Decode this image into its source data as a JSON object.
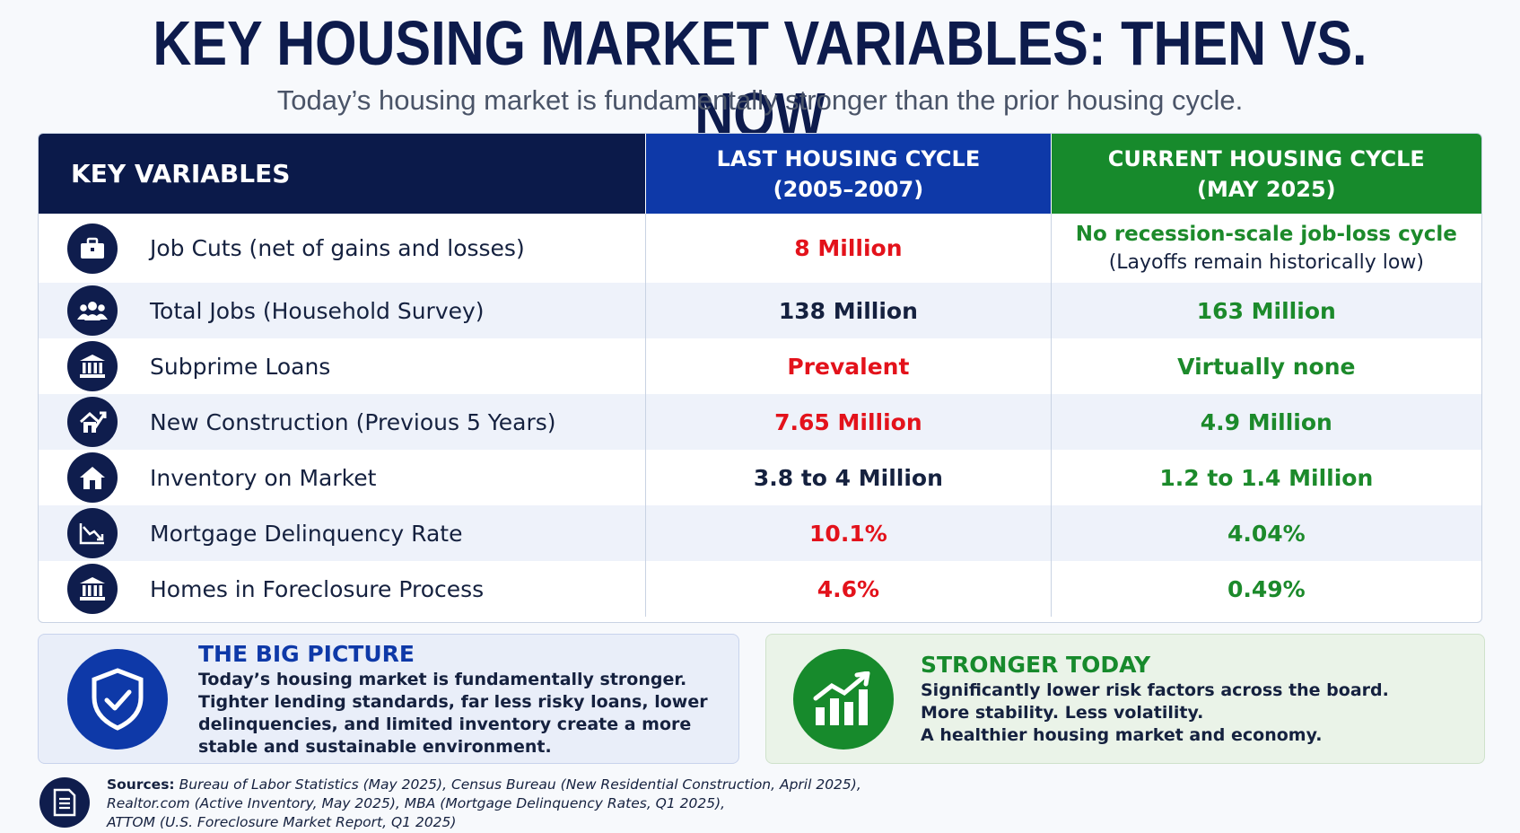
{
  "header": {
    "title": "KEY HOUSING MARKET VARIABLES: THEN VS. NOW",
    "subtitle": "Today’s housing market is fundamentally stronger than the prior housing cycle."
  },
  "table": {
    "col_key": "KEY VARIABLES",
    "col_last_line1": "LAST HOUSING CYCLE",
    "col_last_line2": "(2005–2007)",
    "col_cur_line1": "CURRENT HOUSING CYCLE",
    "col_cur_line2": "(MAY 2025)",
    "colors": {
      "key_header": "#0b1a4a",
      "last_header": "#0e39a8",
      "current_header": "#178a2c",
      "negative": "#e3121b",
      "positive": "#1c8a2b"
    },
    "rows": [
      {
        "icon": "briefcase-icon",
        "label": "Job Cuts (net of gains and losses)",
        "last": "8 Million",
        "current": "No recession-scale job-loss cycle",
        "current_note": "(Layoffs remain historically low)"
      },
      {
        "icon": "people-icon",
        "label": "Total Jobs (Household Survey)",
        "last": "138 Million",
        "current": "163 Million"
      },
      {
        "icon": "bank-icon",
        "label": "Subprime Loans",
        "last": "Prevalent",
        "current": "Virtually none"
      },
      {
        "icon": "house-construction-icon",
        "label": "New Construction (Previous 5 Years)",
        "last": "7.65 Million",
        "current": "4.9 Million"
      },
      {
        "icon": "house-icon",
        "label": "Inventory on Market",
        "last": "3.8 to 4 Million",
        "current": "1.2 to 1.4 Million"
      },
      {
        "icon": "declining-chart-icon",
        "label": "Mortgage Delinquency Rate",
        "last": "10.1%",
        "current": "4.04%"
      },
      {
        "icon": "bank-icon",
        "label": "Homes in Foreclosure Process",
        "last": "4.6%",
        "current": "0.49%"
      }
    ]
  },
  "big_picture": {
    "icon": "shield-check-icon",
    "heading": "THE BIG PICTURE",
    "line1": "Today’s housing market is fundamentally stronger.",
    "line2": "Tighter lending standards, far less risky loans, lower",
    "line3": "delinquencies, and limited inventory create a more",
    "line4": "stable and sustainable environment."
  },
  "stronger_today": {
    "icon": "rising-chart-icon",
    "heading": "STRONGER TODAY",
    "line1": "Significantly lower risk factors across the board.",
    "line2": "More stability. Less volatility.",
    "line3": "A healthier housing market and economy."
  },
  "sources": {
    "icon": "document-icon",
    "label": "Sources:",
    "line1": "Bureau of Labor Statistics (May 2025), Census Bureau (New Residential Construction, April 2025),",
    "line2": "Realtor.com (Active Inventory, May 2025), MBA (Mortgage Delinquency Rates, Q1 2025),",
    "line3": "ATTOM (U.S. Foreclosure Market Report, Q1 2025)"
  }
}
